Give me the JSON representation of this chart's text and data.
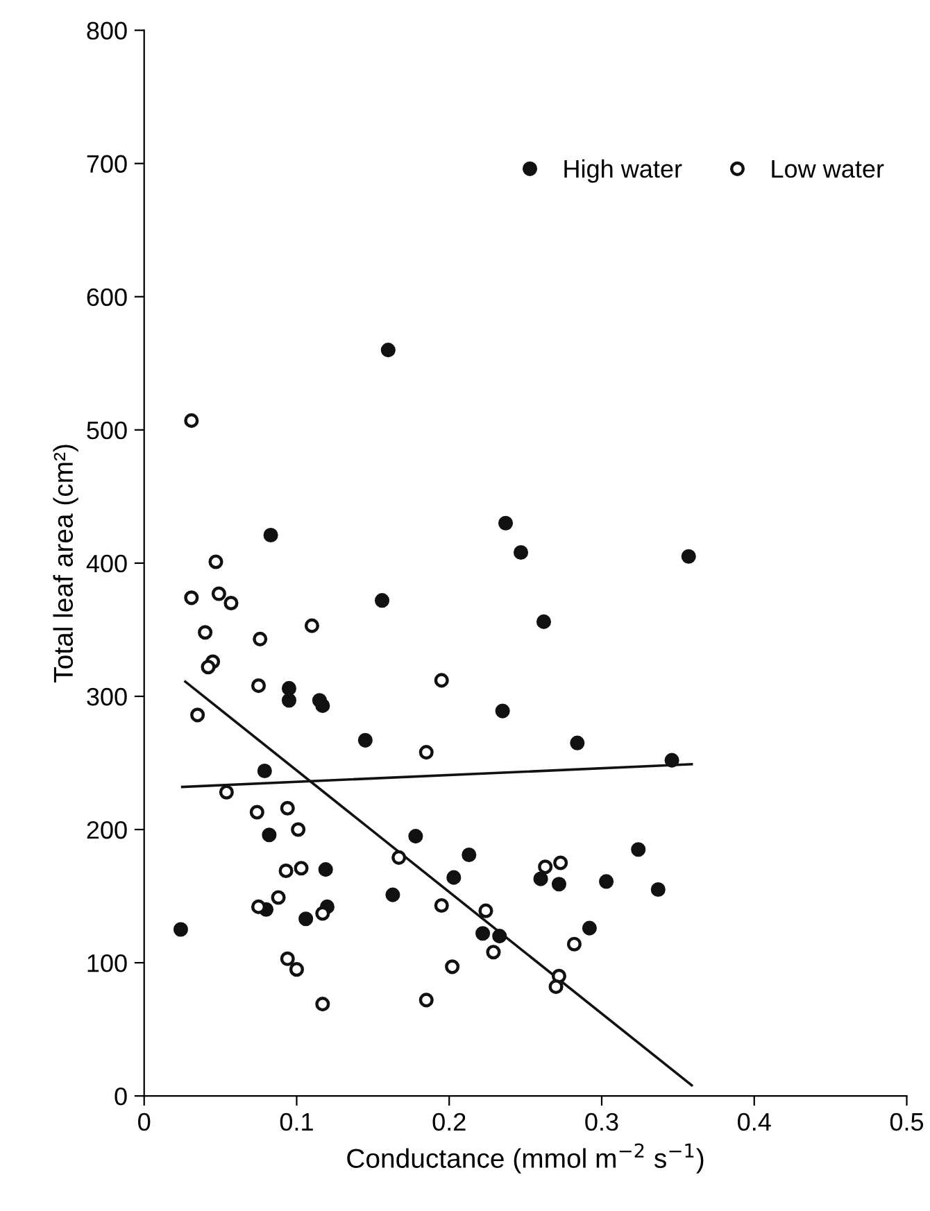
{
  "chart_data": {
    "type": "scatter",
    "xlabel": "Conductance (mmol m$^{−2}$ s$^{−1}$)",
    "ylabel": "Total leaf area (cm²)",
    "xlim": [
      0,
      0.5
    ],
    "ylim": [
      0,
      800
    ],
    "xticks": [
      0,
      0.1,
      0.2,
      0.3,
      0.4,
      0.5
    ],
    "yticks": [
      0,
      100,
      200,
      300,
      400,
      500,
      600,
      700,
      800
    ],
    "grid": false,
    "legend": "top right",
    "marker": "circle",
    "series": [
      {
        "name": "High water",
        "color": "#111111",
        "x": [
          0.16,
          0.083,
          0.237,
          0.247,
          0.357,
          0.156,
          0.262,
          0.095,
          0.095,
          0.115,
          0.117,
          0.235,
          0.145,
          0.284,
          0.346,
          0.079,
          0.082,
          0.178,
          0.324,
          0.213,
          0.119,
          0.203,
          0.26,
          0.303,
          0.272,
          0.163,
          0.337,
          0.12,
          0.08,
          0.106,
          0.292,
          0.024,
          0.222,
          0.233
        ],
        "values": [
          560,
          421,
          430,
          408,
          405,
          372,
          356,
          306,
          297,
          297,
          293,
          289,
          267,
          265,
          252,
          244,
          196,
          195,
          185,
          181,
          170,
          164,
          163,
          161,
          159,
          151,
          155,
          142,
          140,
          133,
          126,
          125,
          122,
          120
        ]
      },
      {
        "name": "Low water",
        "color": "#ffffff",
        "x": [
          0.031,
          0.047,
          0.031,
          0.049,
          0.057,
          0.04,
          0.076,
          0.11,
          0.045,
          0.042,
          0.075,
          0.035,
          0.054,
          0.074,
          0.094,
          0.101,
          0.093,
          0.103,
          0.088,
          0.075,
          0.117,
          0.094,
          0.1,
          0.117,
          0.195,
          0.185,
          0.263,
          0.273,
          0.167,
          0.195,
          0.224,
          0.229,
          0.282,
          0.202,
          0.185,
          0.272,
          0.27
        ],
        "values": [
          507,
          401,
          374,
          377,
          370,
          348,
          343,
          353,
          326,
          322,
          308,
          286,
          228,
          213,
          216,
          200,
          169,
          171,
          149,
          142,
          137,
          103,
          95,
          69,
          312,
          258,
          172,
          175,
          179,
          143,
          139,
          108,
          114,
          97,
          72,
          90,
          82
        ]
      },
      {
        "type": "line",
        "color": "#111111",
        "marker": "none",
        "line_style": "solid",
        "x": [
          0.025,
          0.359
        ],
        "values": [
          232,
          249
        ]
      },
      {
        "type": "line",
        "color": "#111111",
        "marker": "none",
        "line_style": "solid",
        "x": [
          0.027,
          0.359
        ],
        "values": [
          311,
          8
        ]
      }
    ]
  }
}
